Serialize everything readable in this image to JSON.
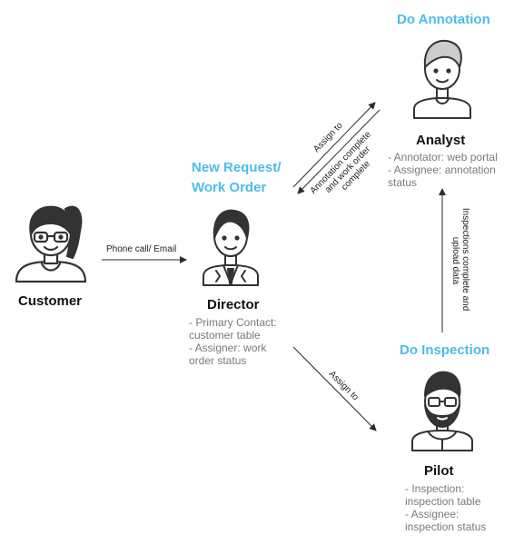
{
  "stages": {
    "annotation": "Do Annotation",
    "request_line1": "New Request/",
    "request_line2": "Work Order",
    "inspection": "Do Inspection"
  },
  "roles": {
    "customer": {
      "name": "Customer"
    },
    "director": {
      "name": "Director",
      "desc": [
        "- Primary Contact:",
        "customer table",
        "- Assigner: work",
        "order status"
      ]
    },
    "analyst": {
      "name": "Analyst",
      "desc": [
        "- Annotator: web portal",
        "- Assignee: annotation",
        "status"
      ]
    },
    "pilot": {
      "name": "Pilot",
      "desc": [
        "- Inspection:",
        "inspection table",
        "- Assignee:",
        "inspection status"
      ]
    }
  },
  "edges": {
    "phone_email": "Phone call/ Email",
    "assign_analyst": "Assign to",
    "annotation_complete": [
      "Annotation complete",
      "and work order",
      "complete"
    ],
    "assign_pilot": "Assign to",
    "inspections_complete": [
      "Inspections complete and",
      "upload data"
    ]
  },
  "colors": {
    "accent": "#4dbce8",
    "text": "#111111",
    "muted": "#7a7a7a",
    "line": "#2b2b2b"
  }
}
